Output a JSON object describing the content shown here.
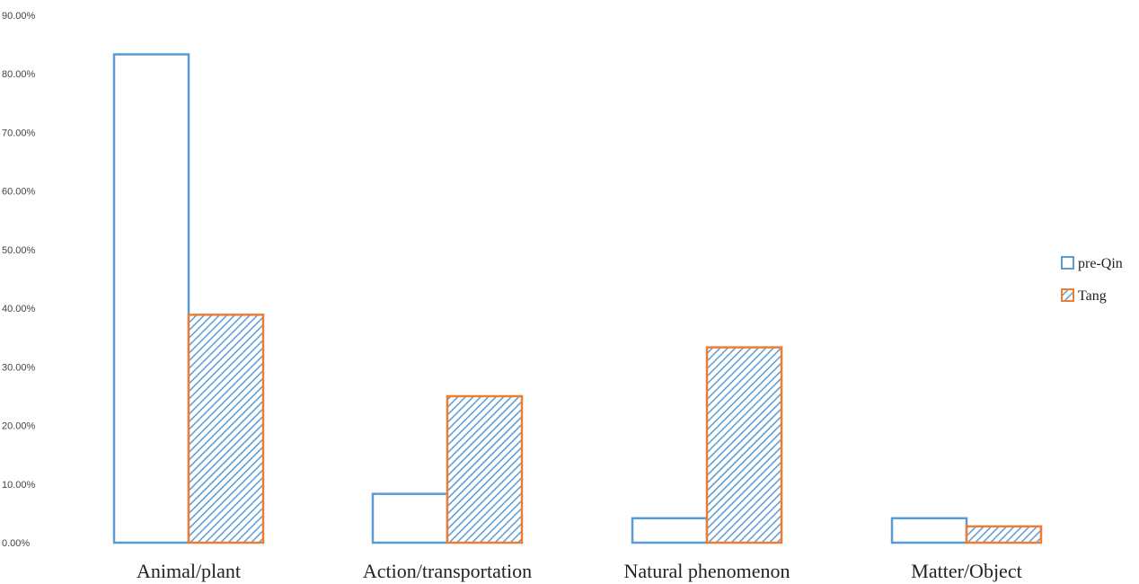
{
  "chart_data": {
    "type": "bar",
    "categories": [
      "Animal/plant",
      "Action/transportation",
      "Natural phenomenon",
      "Matter/Object"
    ],
    "series": [
      {
        "name": "pre-Qin",
        "values": [
          83.33,
          8.33,
          4.17,
          4.17
        ],
        "stroke": "#5b9bd5",
        "fill": "none"
      },
      {
        "name": "Tang",
        "values": [
          38.89,
          25.0,
          33.33,
          2.78
        ],
        "stroke": "#ed7d31",
        "fill": "hatch"
      }
    ],
    "hatch_color": "#5b9bd5",
    "y_ticks": [
      "0.00%",
      "10.00%",
      "20.00%",
      "30.00%",
      "40.00%",
      "50.00%",
      "60.00%",
      "70.00%",
      "80.00%",
      "90.00%"
    ],
    "ylim": [
      0,
      90
    ],
    "title": "",
    "xlabel": "",
    "ylabel": "",
    "grid": false,
    "legend_position": "right"
  }
}
